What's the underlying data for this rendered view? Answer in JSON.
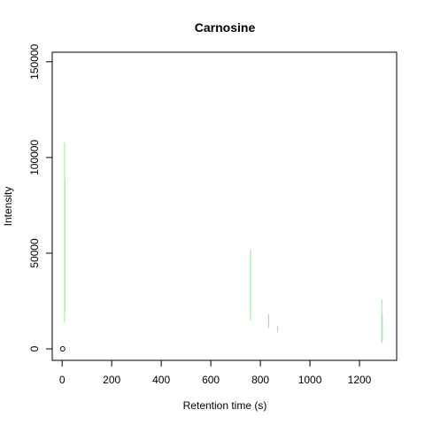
{
  "chart_data": {
    "type": "scatter",
    "title": "Carnosine",
    "xlabel": "Retention time (s)",
    "ylabel": "Intensity",
    "xlim": [
      -40,
      1350
    ],
    "ylim": [
      -6000,
      155000
    ],
    "xticks": [
      0,
      200,
      400,
      600,
      800,
      1000,
      1200
    ],
    "yticks": [
      0,
      50000,
      100000,
      150000
    ],
    "xtick_labels": [
      "0",
      "200",
      "400",
      "600",
      "800",
      "1000",
      "1200"
    ],
    "ytick_labels": [
      "0",
      "50000",
      "100000",
      "150000"
    ],
    "grid": false,
    "legend": "none",
    "point": {
      "x": 2,
      "y": 0
    },
    "series": [
      {
        "color": "#90ee90",
        "segments": [
          {
            "x": 10,
            "y0": 14000,
            "y1": 108000
          },
          {
            "x": 11,
            "y0": 20000,
            "y1": 88000
          },
          {
            "x": 760,
            "y0": 15000,
            "y1": 52000
          },
          {
            "x": 1290,
            "y0": 3000,
            "y1": 26000
          },
          {
            "x": 1292,
            "y0": 4000,
            "y1": 18000
          }
        ]
      },
      {
        "color": "#b0b0ff",
        "segments": [
          {
            "x": 833,
            "y0": 11000,
            "y1": 18000
          },
          {
            "x": 870,
            "y0": 9000,
            "y1": 12000
          }
        ]
      }
    ]
  }
}
